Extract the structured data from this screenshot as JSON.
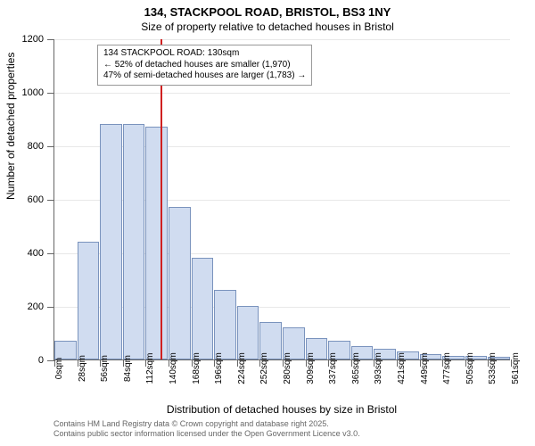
{
  "header": {
    "title": "134, STACKPOOL ROAD, BRISTOL, BS3 1NY",
    "subtitle": "Size of property relative to detached houses in Bristol"
  },
  "chart": {
    "type": "histogram",
    "y_axis_label": "Number of detached properties",
    "x_axis_label": "Distribution of detached houses by size in Bristol",
    "ylim": [
      0,
      1200
    ],
    "ytick_step": 200,
    "y_ticks": [
      0,
      200,
      400,
      600,
      800,
      1000,
      1200
    ],
    "x_tick_labels": [
      "0sqm",
      "28sqm",
      "56sqm",
      "84sqm",
      "112sqm",
      "140sqm",
      "168sqm",
      "196sqm",
      "224sqm",
      "252sqm",
      "280sqm",
      "309sqm",
      "337sqm",
      "365sqm",
      "393sqm",
      "421sqm",
      "449sqm",
      "477sqm",
      "505sqm",
      "533sqm",
      "561sqm"
    ],
    "bars": [
      70,
      440,
      880,
      880,
      870,
      570,
      380,
      260,
      200,
      140,
      120,
      80,
      70,
      50,
      40,
      30,
      20,
      15,
      12,
      10
    ],
    "bar_fill": "#d0dcf0",
    "bar_border": "#7a93bd",
    "grid_color": "#e8e8e8",
    "background_color": "#ffffff",
    "marker": {
      "value_sqm": 130,
      "max_sqm": 561,
      "color": "#d02020"
    },
    "annotation": {
      "line1": "134 STACKPOOL ROAD: 130sqm",
      "line2": "← 52% of detached houses are smaller (1,970)",
      "line3": "47% of semi-detached houses are larger (1,783) →"
    },
    "tick_label_fontsize": 10,
    "axis_label_fontsize": 12,
    "title_fontsize": 13
  },
  "footer": {
    "line1": "Contains HM Land Registry data © Crown copyright and database right 2025.",
    "line2": "Contains public sector information licensed under the Open Government Licence v3.0."
  }
}
